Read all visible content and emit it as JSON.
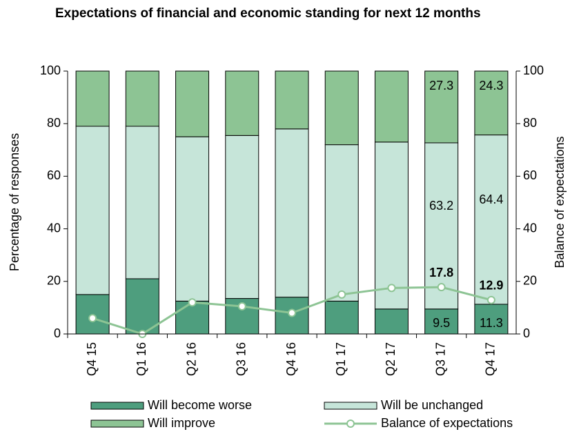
{
  "chart_data": {
    "type": "stacked_bar_line",
    "title": "Expectations of financial and economic standing for next 12 months",
    "ylabel": "Percentage of responses",
    "y2label": "Balance of expectations",
    "categories": [
      "Q4 15",
      "Q1 16",
      "Q2 16",
      "Q3 16",
      "Q4 16",
      "Q1 17",
      "Q2 17",
      "Q3 17",
      "Q4 17"
    ],
    "series": [
      {
        "name": "Will become worse",
        "color": "#4e9e7e",
        "values": [
          15,
          21,
          12.5,
          13.5,
          14,
          12.5,
          9.5,
          9.5,
          11.3
        ],
        "value_labels": [
          null,
          null,
          null,
          null,
          null,
          null,
          null,
          "9.5",
          "11.3"
        ]
      },
      {
        "name": "Will be unchanged",
        "color": "#c6e5d9",
        "values": [
          64,
          58,
          62.5,
          62,
          64,
          59.5,
          63.5,
          63.2,
          64.4
        ],
        "value_labels": [
          null,
          null,
          null,
          null,
          null,
          null,
          null,
          "63.2",
          "64.4"
        ]
      },
      {
        "name": "Will improve",
        "color": "#8dc494",
        "values": [
          21,
          21,
          25,
          24.5,
          22,
          28,
          27,
          27.3,
          24.3
        ],
        "value_labels": [
          null,
          null,
          null,
          null,
          null,
          null,
          null,
          "27.3",
          "24.3"
        ]
      },
      {
        "name": "Balance of expectations",
        "color": "#8dc494",
        "axis": "y2",
        "values": [
          6,
          0,
          12,
          10.5,
          8,
          15,
          17.5,
          17.8,
          12.9
        ],
        "value_labels": [
          null,
          null,
          null,
          null,
          null,
          null,
          null,
          "17.8",
          "12.9"
        ]
      }
    ],
    "ylim": [
      0,
      100
    ],
    "yticks": [
      0,
      20,
      40,
      60,
      80,
      100
    ],
    "y2lim": [
      0,
      100
    ],
    "y2ticks": [
      0,
      20,
      40,
      60,
      80,
      100
    ]
  }
}
